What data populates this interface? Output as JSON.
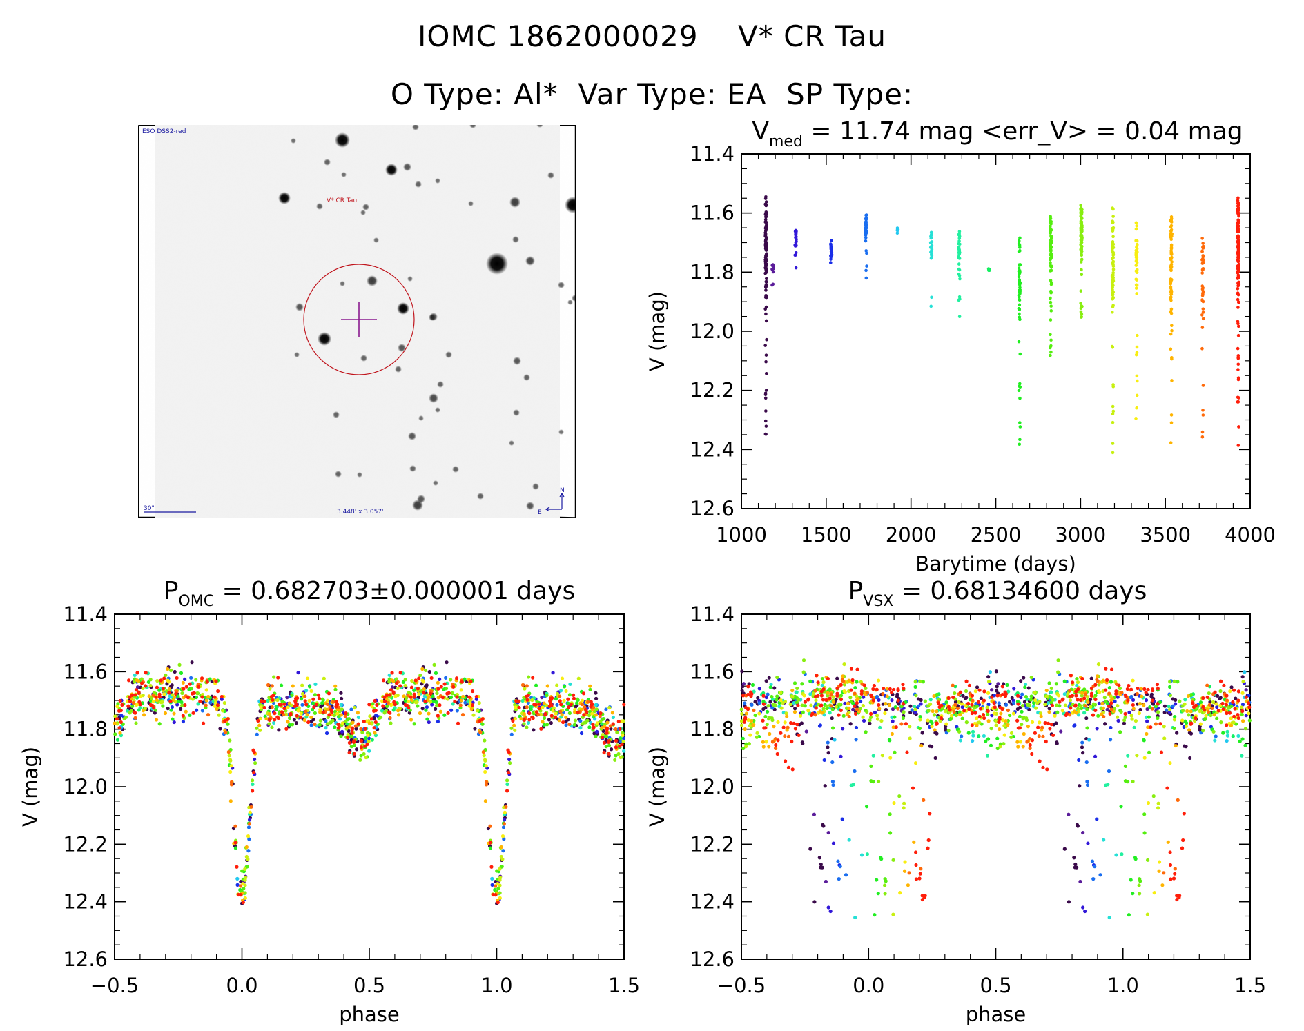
{
  "header": {
    "object_id": "IOMC 1862000029",
    "object_name": "V* CR Tau",
    "line2": "O Type: Al*  Var Type: EA  SP Type:"
  },
  "finder": {
    "survey_label": "ESO DSS2-red",
    "target_label": "V* CR Tau",
    "scale_label": "30\"",
    "fov_label": "3.448' x 3.057'",
    "north_label": "N",
    "east_label": "E",
    "colors": {
      "circle": "#c0141c",
      "crosshair": "#8a1a8f",
      "annotation": "#1a1aa0",
      "target_text": "#c0141c"
    }
  },
  "chart_data": [
    {
      "id": "timeseries",
      "type": "scatter",
      "title_main": "V",
      "title_sub": "med",
      "title_rest": " = 11.74 mag <err_V> = 0.04 mag",
      "median_V": 11.74,
      "mean_err_V": 0.04,
      "xlabel": "Barytime (days)",
      "ylabel": "V (mag)",
      "xlim": [
        1000,
        4000
      ],
      "ylim": [
        12.6,
        11.4
      ],
      "y_inverted": true,
      "xticks": [
        1000,
        1500,
        2000,
        2500,
        3000,
        3500,
        4000
      ],
      "xtick_labels": [
        "1000",
        "1500",
        "2000",
        "2500",
        "3000",
        "3500",
        "4000"
      ],
      "yticks": [
        11.4,
        11.6,
        11.8,
        12.0,
        12.2,
        12.4,
        12.6
      ],
      "ytick_labels": [
        "11.4",
        "11.6",
        "11.8",
        "12.0",
        "12.2",
        "12.4",
        "12.6"
      ],
      "seasons": [
        {
          "t": 1145,
          "color": "#3a0a4a",
          "vmin": 11.53,
          "vmax": 12.38,
          "n": 120
        },
        {
          "t": 1185,
          "color": "#5a1c9a",
          "vmin": 11.77,
          "vmax": 11.85,
          "n": 14
        },
        {
          "t": 1320,
          "color": "#3218d8",
          "vmin": 11.64,
          "vmax": 11.83,
          "n": 30
        },
        {
          "t": 1530,
          "color": "#1a2ee8",
          "vmin": 11.69,
          "vmax": 11.84,
          "n": 22
        },
        {
          "t": 1735,
          "color": "#1a6ef0",
          "vmin": 11.6,
          "vmax": 11.83,
          "n": 45
        },
        {
          "t": 1920,
          "color": "#22c8f0",
          "vmin": 11.65,
          "vmax": 11.67,
          "n": 8
        },
        {
          "t": 2120,
          "color": "#26e0d6",
          "vmin": 11.65,
          "vmax": 11.94,
          "n": 22
        },
        {
          "t": 2285,
          "color": "#22f0a0",
          "vmin": 11.66,
          "vmax": 11.96,
          "n": 30
        },
        {
          "t": 2460,
          "color": "#14f060",
          "vmin": 11.78,
          "vmax": 11.84,
          "n": 8
        },
        {
          "t": 2640,
          "color": "#22ee22",
          "vmin": 11.68,
          "vmax": 12.39,
          "n": 60
        },
        {
          "t": 2825,
          "color": "#55ee10",
          "vmin": 11.6,
          "vmax": 12.16,
          "n": 70
        },
        {
          "t": 3005,
          "color": "#88ee10",
          "vmin": 11.56,
          "vmax": 11.99,
          "n": 80
        },
        {
          "t": 3190,
          "color": "#c8f010",
          "vmin": 11.58,
          "vmax": 12.43,
          "n": 70
        },
        {
          "t": 3330,
          "color": "#f8ee10",
          "vmin": 11.63,
          "vmax": 12.3,
          "n": 45
        },
        {
          "t": 3535,
          "color": "#ffb400",
          "vmin": 11.59,
          "vmax": 12.38,
          "n": 70
        },
        {
          "t": 3720,
          "color": "#ff6a0a",
          "vmin": 11.66,
          "vmax": 12.38,
          "n": 40
        },
        {
          "t": 3930,
          "color": "#ff1e0a",
          "vmin": 11.52,
          "vmax": 12.39,
          "n": 150
        }
      ]
    },
    {
      "id": "phase_omc",
      "type": "scatter",
      "title_main": "P",
      "title_sub": "OMC",
      "title_rest": " = 0.682703±0.000001 days",
      "period_days": 0.682703,
      "period_err_days": 1e-06,
      "xlabel": "phase",
      "ylabel": "V (mag)",
      "xlim": [
        -0.5,
        1.5
      ],
      "ylim": [
        12.6,
        11.4
      ],
      "y_inverted": true,
      "xticks": [
        -0.5,
        0.0,
        0.5,
        1.0,
        1.5
      ],
      "xtick_labels": [
        "−0.5",
        "0.0",
        "0.5",
        "1.0",
        "1.5"
      ],
      "yticks": [
        11.4,
        11.6,
        11.8,
        12.0,
        12.2,
        12.4,
        12.6
      ],
      "ytick_labels": [
        "11.4",
        "11.6",
        "11.8",
        "12.0",
        "12.2",
        "12.4",
        "12.6"
      ],
      "light_curve_model": {
        "max_mag": 11.7,
        "primary_min": {
          "phase": 0.0,
          "mag": 12.38,
          "width": 0.055
        },
        "secondary_min": {
          "phase": 0.46,
          "mag": 11.83,
          "width": 0.07
        },
        "scatter_mag": 0.04,
        "phase_shift_per_season": 0.0
      }
    },
    {
      "id": "phase_vsx",
      "type": "scatter",
      "title_main": "P",
      "title_sub": "VSX",
      "title_rest": " = 0.68134600 days",
      "period_days": 0.681346,
      "xlabel": "phase",
      "ylabel": "V (mag)",
      "xlim": [
        -0.5,
        1.5
      ],
      "ylim": [
        12.6,
        11.4
      ],
      "y_inverted": true,
      "xticks": [
        -0.5,
        0.0,
        0.5,
        1.0,
        1.5
      ],
      "xtick_labels": [
        "−0.5",
        "0.0",
        "0.5",
        "1.0",
        "1.5"
      ],
      "yticks": [
        11.4,
        11.6,
        11.8,
        12.0,
        12.2,
        12.4,
        12.6
      ],
      "ytick_labels": [
        "11.4",
        "11.6",
        "11.8",
        "12.0",
        "12.2",
        "12.4",
        "12.6"
      ],
      "light_curve_model": {
        "max_mag": 11.7,
        "primary_min": {
          "phase": 0.0,
          "mag": 12.38,
          "width": 0.055
        },
        "secondary_min": {
          "phase": 0.46,
          "mag": 11.83,
          "width": 0.07
        },
        "scatter_mag": 0.04,
        "phase_shift_per_season": 0.026
      }
    }
  ]
}
